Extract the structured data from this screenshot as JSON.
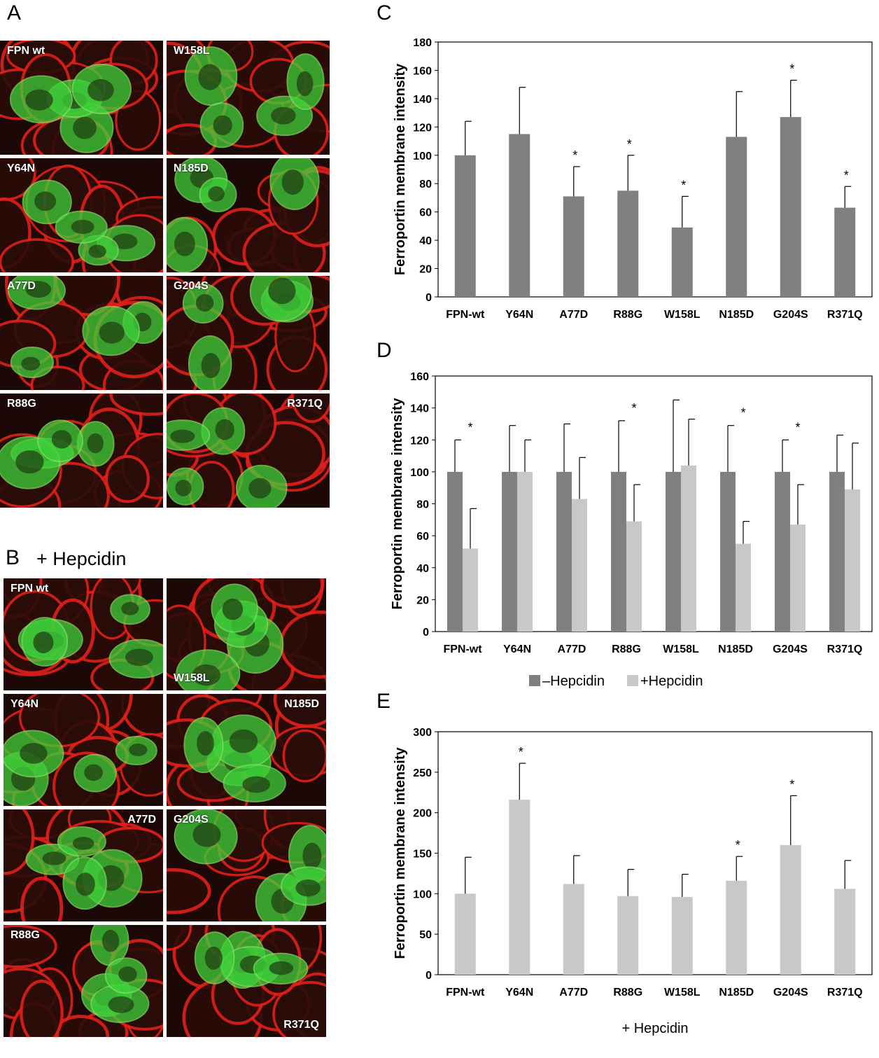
{
  "panel_labels": {
    "a": "A",
    "b": "B",
    "c": "C",
    "d": "D",
    "e": "E"
  },
  "panel_b_subtitle": "+ Hepcidin",
  "microscopy_a": [
    {
      "label": "FPN wt",
      "corner": "top-left"
    },
    {
      "label": "W158L",
      "corner": "top-left"
    },
    {
      "label": "Y64N",
      "corner": "top-left"
    },
    {
      "label": "N185D",
      "corner": "top-left"
    },
    {
      "label": "A77D",
      "corner": "top-left"
    },
    {
      "label": "G204S",
      "corner": "top-left"
    },
    {
      "label": "R88G",
      "corner": "top-left"
    },
    {
      "label": "R371Q",
      "corner": "top-right"
    }
  ],
  "microscopy_b": [
    {
      "label": "FPN wt",
      "corner": "top-left"
    },
    {
      "label": "W158L",
      "corner": "bottom-left"
    },
    {
      "label": "Y64N",
      "corner": "top-left"
    },
    {
      "label": "N185D",
      "corner": "top-right"
    },
    {
      "label": "A77D",
      "corner": "top-right"
    },
    {
      "label": "G204S",
      "corner": "top-left"
    },
    {
      "label": "R88G",
      "corner": "top-left"
    },
    {
      "label": "R371Q",
      "corner": "bottom-right"
    }
  ],
  "colors": {
    "dark_bar": "#808080",
    "light_bar": "#c8c8c8",
    "cell_membrane": "#e0201a",
    "cell_fpn": "#3ed13a"
  },
  "chart_data": [
    {
      "panel": "C",
      "type": "bar",
      "categories": [
        "FPN-wt",
        "Y64N",
        "A77D",
        "R88G",
        "W158L",
        "N185D",
        "G204S",
        "R371Q"
      ],
      "series": [
        {
          "values": [
            100,
            115,
            71,
            75,
            49,
            113,
            127,
            63
          ],
          "errors": [
            24,
            33,
            21,
            25,
            22,
            32,
            26,
            15
          ],
          "color": "#808080"
        }
      ],
      "significant": [
        false,
        false,
        true,
        true,
        true,
        false,
        true,
        true
      ],
      "ylabel": "Ferroportin membrane intensity",
      "ylim": [
        0,
        180
      ],
      "yticks": [
        0,
        20,
        40,
        60,
        80,
        100,
        120,
        140,
        160,
        180
      ],
      "grid": false
    },
    {
      "panel": "D",
      "type": "bar",
      "categories": [
        "FPN-wt",
        "Y64N",
        "A77D",
        "R88G",
        "W158L",
        "N185D",
        "G204S",
        "R371Q"
      ],
      "series": [
        {
          "name": "–Hepcidin",
          "values": [
            100,
            100,
            100,
            100,
            100,
            100,
            100,
            100
          ],
          "errors": [
            20,
            29,
            30,
            32,
            45,
            29,
            20,
            23
          ],
          "color": "#808080"
        },
        {
          "name": "+Hepcidin",
          "values": [
            52,
            100,
            83,
            69,
            104,
            55,
            67,
            89
          ],
          "errors": [
            25,
            20,
            26,
            23,
            29,
            14,
            25,
            29
          ],
          "color": "#c8c8c8"
        }
      ],
      "significant": [
        true,
        false,
        false,
        true,
        false,
        true,
        true,
        false
      ],
      "ylabel": "Ferroportin membrane intensity",
      "ylim": [
        0,
        160
      ],
      "yticks": [
        0,
        20,
        40,
        60,
        80,
        100,
        120,
        140,
        160
      ],
      "legend": "bottom",
      "grid": false
    },
    {
      "panel": "E",
      "type": "bar",
      "categories": [
        "FPN-wt",
        "Y64N",
        "A77D",
        "R88G",
        "W158L",
        "N185D",
        "G204S",
        "R371Q"
      ],
      "series": [
        {
          "values": [
            100,
            216,
            112,
            97,
            96,
            116,
            160,
            106
          ],
          "errors": [
            45,
            45,
            35,
            33,
            28,
            30,
            61,
            35
          ],
          "color": "#c8c8c8"
        }
      ],
      "significant": [
        false,
        true,
        false,
        false,
        false,
        true,
        true,
        false
      ],
      "ylabel": "Ferroportin membrane intensity",
      "xlabel": "+ Hepcidin",
      "ylim": [
        0,
        300
      ],
      "yticks": [
        0,
        50,
        100,
        150,
        200,
        250,
        300
      ],
      "grid": false
    }
  ]
}
